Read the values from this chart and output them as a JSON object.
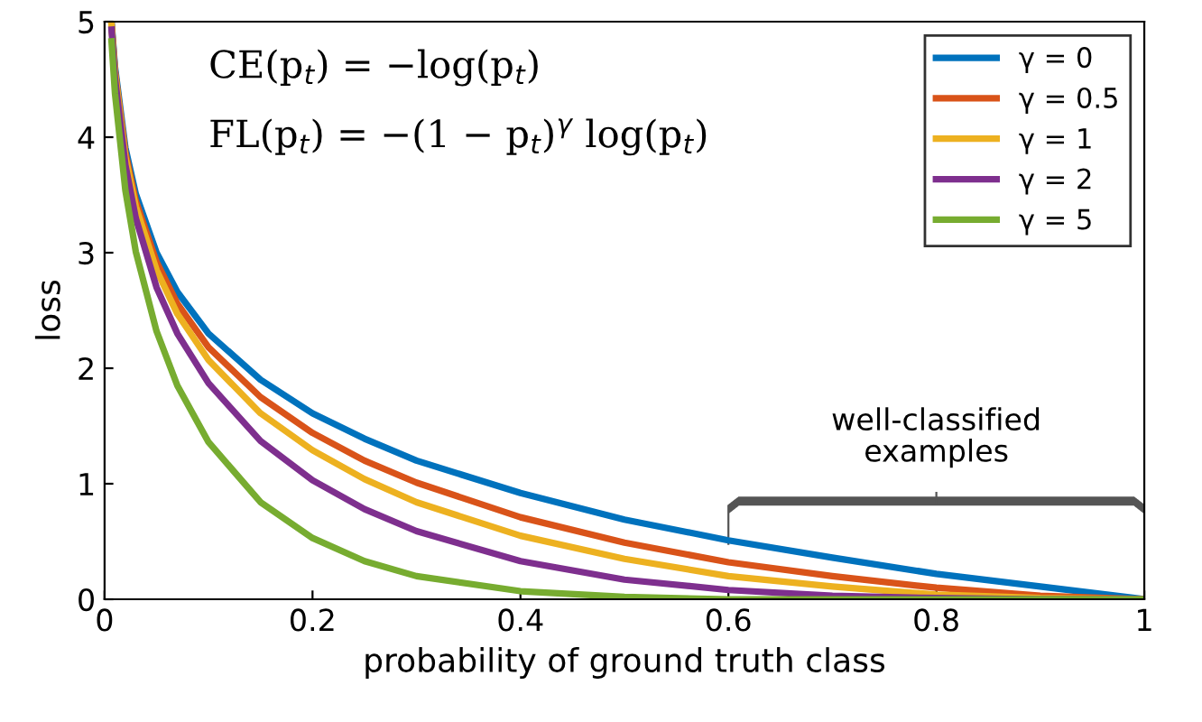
{
  "chart_data": {
    "type": "line",
    "xlabel": "probability of ground truth class",
    "ylabel": "loss",
    "xlim": [
      0,
      1
    ],
    "ylim": [
      0,
      5
    ],
    "xticks": [
      0,
      0.2,
      0.4,
      0.6,
      0.8,
      1
    ],
    "yticks": [
      0,
      1,
      2,
      3,
      4,
      5
    ],
    "x": [
      0.0067,
      0.01,
      0.02,
      0.03,
      0.05,
      0.07,
      0.1,
      0.15,
      0.2,
      0.25,
      0.3,
      0.4,
      0.5,
      0.6,
      0.7,
      0.8,
      0.9,
      1.0
    ],
    "series": [
      {
        "name": "γ = 0",
        "color": "#0072bd",
        "values": [
          5.0,
          4.61,
          3.91,
          3.51,
          3.0,
          2.66,
          2.3,
          1.9,
          1.61,
          1.39,
          1.2,
          0.92,
          0.69,
          0.51,
          0.36,
          0.22,
          0.11,
          0
        ]
      },
      {
        "name": "γ = 0.5",
        "color": "#d95319",
        "values": [
          4.98,
          4.58,
          3.87,
          3.45,
          2.92,
          2.56,
          2.18,
          1.75,
          1.44,
          1.2,
          1.01,
          0.71,
          0.49,
          0.32,
          0.2,
          0.1,
          0.03,
          0
        ]
      },
      {
        "name": "γ = 1",
        "color": "#edb120",
        "values": [
          4.97,
          4.56,
          3.83,
          3.4,
          2.85,
          2.47,
          2.07,
          1.61,
          1.29,
          1.04,
          0.84,
          0.55,
          0.35,
          0.2,
          0.11,
          0.04,
          0.01,
          0
        ]
      },
      {
        "name": "γ = 2",
        "color": "#7e2f8e",
        "values": [
          4.93,
          4.51,
          3.76,
          3.3,
          2.7,
          2.3,
          1.87,
          1.37,
          1.03,
          0.78,
          0.59,
          0.33,
          0.17,
          0.08,
          0.03,
          0.01,
          0,
          0
        ]
      },
      {
        "name": "γ = 5",
        "color": "#77ac30",
        "values": [
          4.83,
          4.38,
          3.54,
          3.01,
          2.32,
          1.85,
          1.36,
          0.84,
          0.53,
          0.33,
          0.2,
          0.07,
          0.02,
          0,
          0,
          0,
          0,
          0
        ]
      }
    ],
    "annotations": [
      "CE(p$_{t}$) = −log(p$_{t}$)",
      "FL(p$_{t}$) = −(1 − p$_{t}$)$^{γ}$ log(p$_{t}$)",
      "well-classified\nexamples"
    ],
    "legend": "top right",
    "grid": false,
    "marker": "none",
    "line_style": "solid"
  }
}
